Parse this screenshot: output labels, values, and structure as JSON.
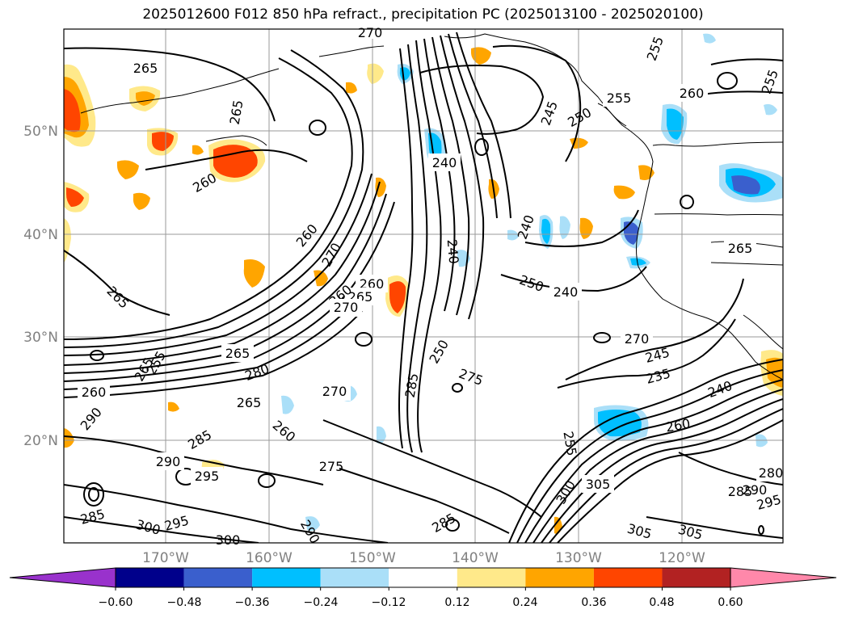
{
  "title": "2025012600 F012 850 hPa refract., precipitation PC (2025013100 - 2025020100)",
  "lat_labels": [
    "50°N",
    "40°N",
    "30°N",
    "20°N"
  ],
  "lon_labels": [
    "170°W",
    "160°W",
    "150°W",
    "140°W",
    "130°W",
    "120°W"
  ],
  "colorbar": {
    "tick_labels": [
      "−0.60",
      "−0.48",
      "−0.36",
      "−0.24",
      "−0.12",
      "0.12",
      "0.24",
      "0.36",
      "0.48",
      "0.60"
    ],
    "colors": [
      "#9932cc",
      "#00008b",
      "#3a5fcd",
      "#00bfff",
      "#aadff8",
      "#ffffff",
      "#ffe98a",
      "#ffa500",
      "#ff4500",
      "#b22222",
      "#ff88aa"
    ],
    "extend": "both"
  },
  "contour_labels": [
    "265",
    "270",
    "255",
    "255",
    "265",
    "260",
    "255",
    "245",
    "250",
    "240",
    "260",
    "260",
    "240",
    "240",
    "270",
    "260",
    "265",
    "250",
    "240",
    "265",
    "265",
    "260",
    "265",
    "270",
    "265",
    "270",
    "245",
    "255",
    "260",
    "280",
    "270",
    "275",
    "235",
    "240",
    "290",
    "265",
    "250",
    "260",
    "285",
    "260",
    "285",
    "290",
    "295",
    "275",
    "255",
    "305",
    "300",
    "280",
    "285",
    "290",
    "295",
    "285",
    "300",
    "295",
    "300",
    "290",
    "285",
    "305",
    "305"
  ],
  "colors": {
    "grid": "#9a9a9a",
    "coast": "#000000",
    "frame": "#000000"
  }
}
